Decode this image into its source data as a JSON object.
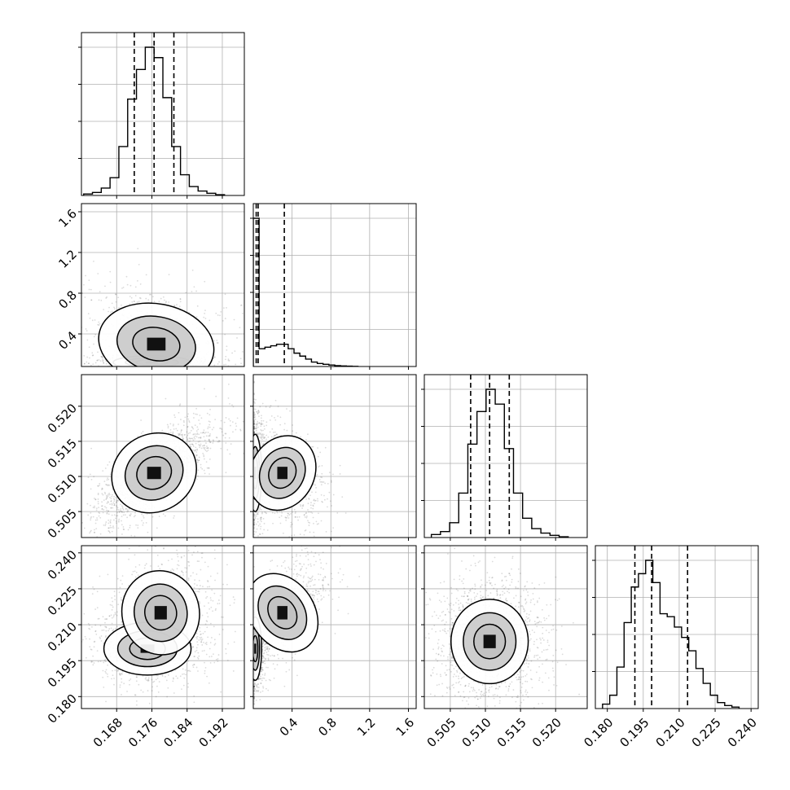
{
  "chart_data": {
    "type": "corner",
    "description_grid": "4x4 lower-triangular corner plot; diagonal = 1D histograms with dashed quantile lines; off-diagonal = 2D scatter with density contours",
    "grid": true,
    "params": [
      {
        "range": [
          0.16,
          0.197
        ],
        "ticks": [
          0.168,
          0.176,
          0.184,
          0.192
        ],
        "tick_labels": [
          "0.168",
          "0.176",
          "0.184",
          "0.192"
        ],
        "quantiles": [
          0.172,
          0.1765,
          0.181
        ],
        "hist_edges": [
          0.1605,
          0.1625,
          0.1645,
          0.1665,
          0.1685,
          0.1705,
          0.1725,
          0.1745,
          0.1765,
          0.1785,
          0.1805,
          0.1825,
          0.1845,
          0.1865,
          0.1885,
          0.1905,
          0.1925
        ],
        "hist_counts": [
          0.01,
          0.02,
          0.05,
          0.12,
          0.33,
          0.65,
          0.85,
          1.0,
          0.93,
          0.66,
          0.33,
          0.14,
          0.06,
          0.03,
          0.015,
          0.005
        ]
      },
      {
        "range": [
          0.0,
          1.68
        ],
        "ticks": [
          0.4,
          0.8,
          1.2,
          1.6
        ],
        "tick_labels": [
          "0.4",
          "0.8",
          "1.2",
          "1.6"
        ],
        "quantiles": [
          0.03,
          0.05,
          0.32
        ],
        "hist_edges": [
          0.0,
          0.06,
          0.12,
          0.18,
          0.24,
          0.3,
          0.36,
          0.42,
          0.48,
          0.54,
          0.6,
          0.66,
          0.72,
          0.78,
          0.84,
          0.9,
          0.96,
          1.02,
          1.08
        ],
        "hist_counts": [
          1.0,
          0.12,
          0.13,
          0.14,
          0.15,
          0.15,
          0.12,
          0.09,
          0.07,
          0.05,
          0.03,
          0.02,
          0.015,
          0.01,
          0.006,
          0.004,
          0.002,
          0.001
        ]
      },
      {
        "range": [
          0.5013,
          0.5245
        ],
        "ticks": [
          0.505,
          0.51,
          0.515,
          0.52
        ],
        "tick_labels": [
          "0.505",
          "0.510",
          "0.515",
          "0.520"
        ],
        "quantiles": [
          0.5079,
          0.5106,
          0.5134
        ],
        "hist_edges": [
          0.5023,
          0.5036,
          0.5049,
          0.5062,
          0.5075,
          0.5088,
          0.5101,
          0.5114,
          0.5127,
          0.514,
          0.5153,
          0.5166,
          0.5179,
          0.5192,
          0.5205,
          0.5218
        ],
        "hist_counts": [
          0.02,
          0.04,
          0.1,
          0.3,
          0.63,
          0.85,
          1.0,
          0.9,
          0.6,
          0.3,
          0.13,
          0.06,
          0.03,
          0.015,
          0.005
        ]
      },
      {
        "range": [
          0.175,
          0.243
        ],
        "ticks": [
          0.18,
          0.195,
          0.21,
          0.225,
          0.24
        ],
        "tick_labels": [
          "0.180",
          "0.195",
          "0.210",
          "0.225",
          "0.240"
        ],
        "y_ticks": [
          0.18,
          0.195,
          0.21,
          0.225,
          0.24
        ],
        "y_tick_labels": [
          "0.180",
          "0.195",
          "0.210",
          "0.225",
          "0.240"
        ],
        "quantiles": [
          0.1915,
          0.1985,
          0.2135
        ],
        "hist_edges": [
          0.178,
          0.181,
          0.184,
          0.187,
          0.19,
          0.193,
          0.196,
          0.199,
          0.202,
          0.205,
          0.208,
          0.211,
          0.214,
          0.217,
          0.22,
          0.223,
          0.226,
          0.229,
          0.232,
          0.235
        ],
        "hist_counts": [
          0.03,
          0.09,
          0.28,
          0.58,
          0.82,
          0.91,
          1.0,
          0.85,
          0.64,
          0.62,
          0.55,
          0.48,
          0.39,
          0.27,
          0.17,
          0.09,
          0.04,
          0.02,
          0.01
        ]
      }
    ],
    "panel_ranges_y": {
      "row1": [
        0.08,
        1.68
      ],
      "row2": [
        0.5013,
        0.5245
      ],
      "row3": [
        0.175,
        0.243
      ]
    },
    "density_peaks": [
      {
        "row": 1,
        "col": 0,
        "peaks": [
          [
            0.176,
            0.12,
            0.004,
            0.03,
            0.0
          ],
          [
            0.177,
            0.3,
            0.006,
            0.18,
            -0.3
          ]
        ]
      },
      {
        "row": 2,
        "col": 0,
        "peaks": [
          [
            0.1765,
            0.5105,
            0.0045,
            0.0025,
            0.75
          ]
        ]
      },
      {
        "row": 2,
        "col": 1,
        "peaks": [
          [
            0.02,
            0.5105,
            0.03,
            0.0025,
            0.0
          ],
          [
            0.3,
            0.5105,
            0.15,
            0.0025,
            -0.5
          ]
        ]
      },
      {
        "row": 3,
        "col": 0,
        "peaks": [
          [
            0.175,
            0.2,
            0.0045,
            0.005,
            0.0
          ],
          [
            0.178,
            0.215,
            0.004,
            0.008,
            0.2
          ]
        ]
      },
      {
        "row": 3,
        "col": 1,
        "peaks": [
          [
            0.02,
            0.2,
            0.03,
            0.006,
            0.0
          ],
          [
            0.3,
            0.215,
            0.15,
            0.008,
            0.6
          ]
        ]
      },
      {
        "row": 3,
        "col": 2,
        "peaks": [
          [
            0.5106,
            0.203,
            0.0025,
            0.008,
            0.0
          ]
        ]
      }
    ]
  }
}
